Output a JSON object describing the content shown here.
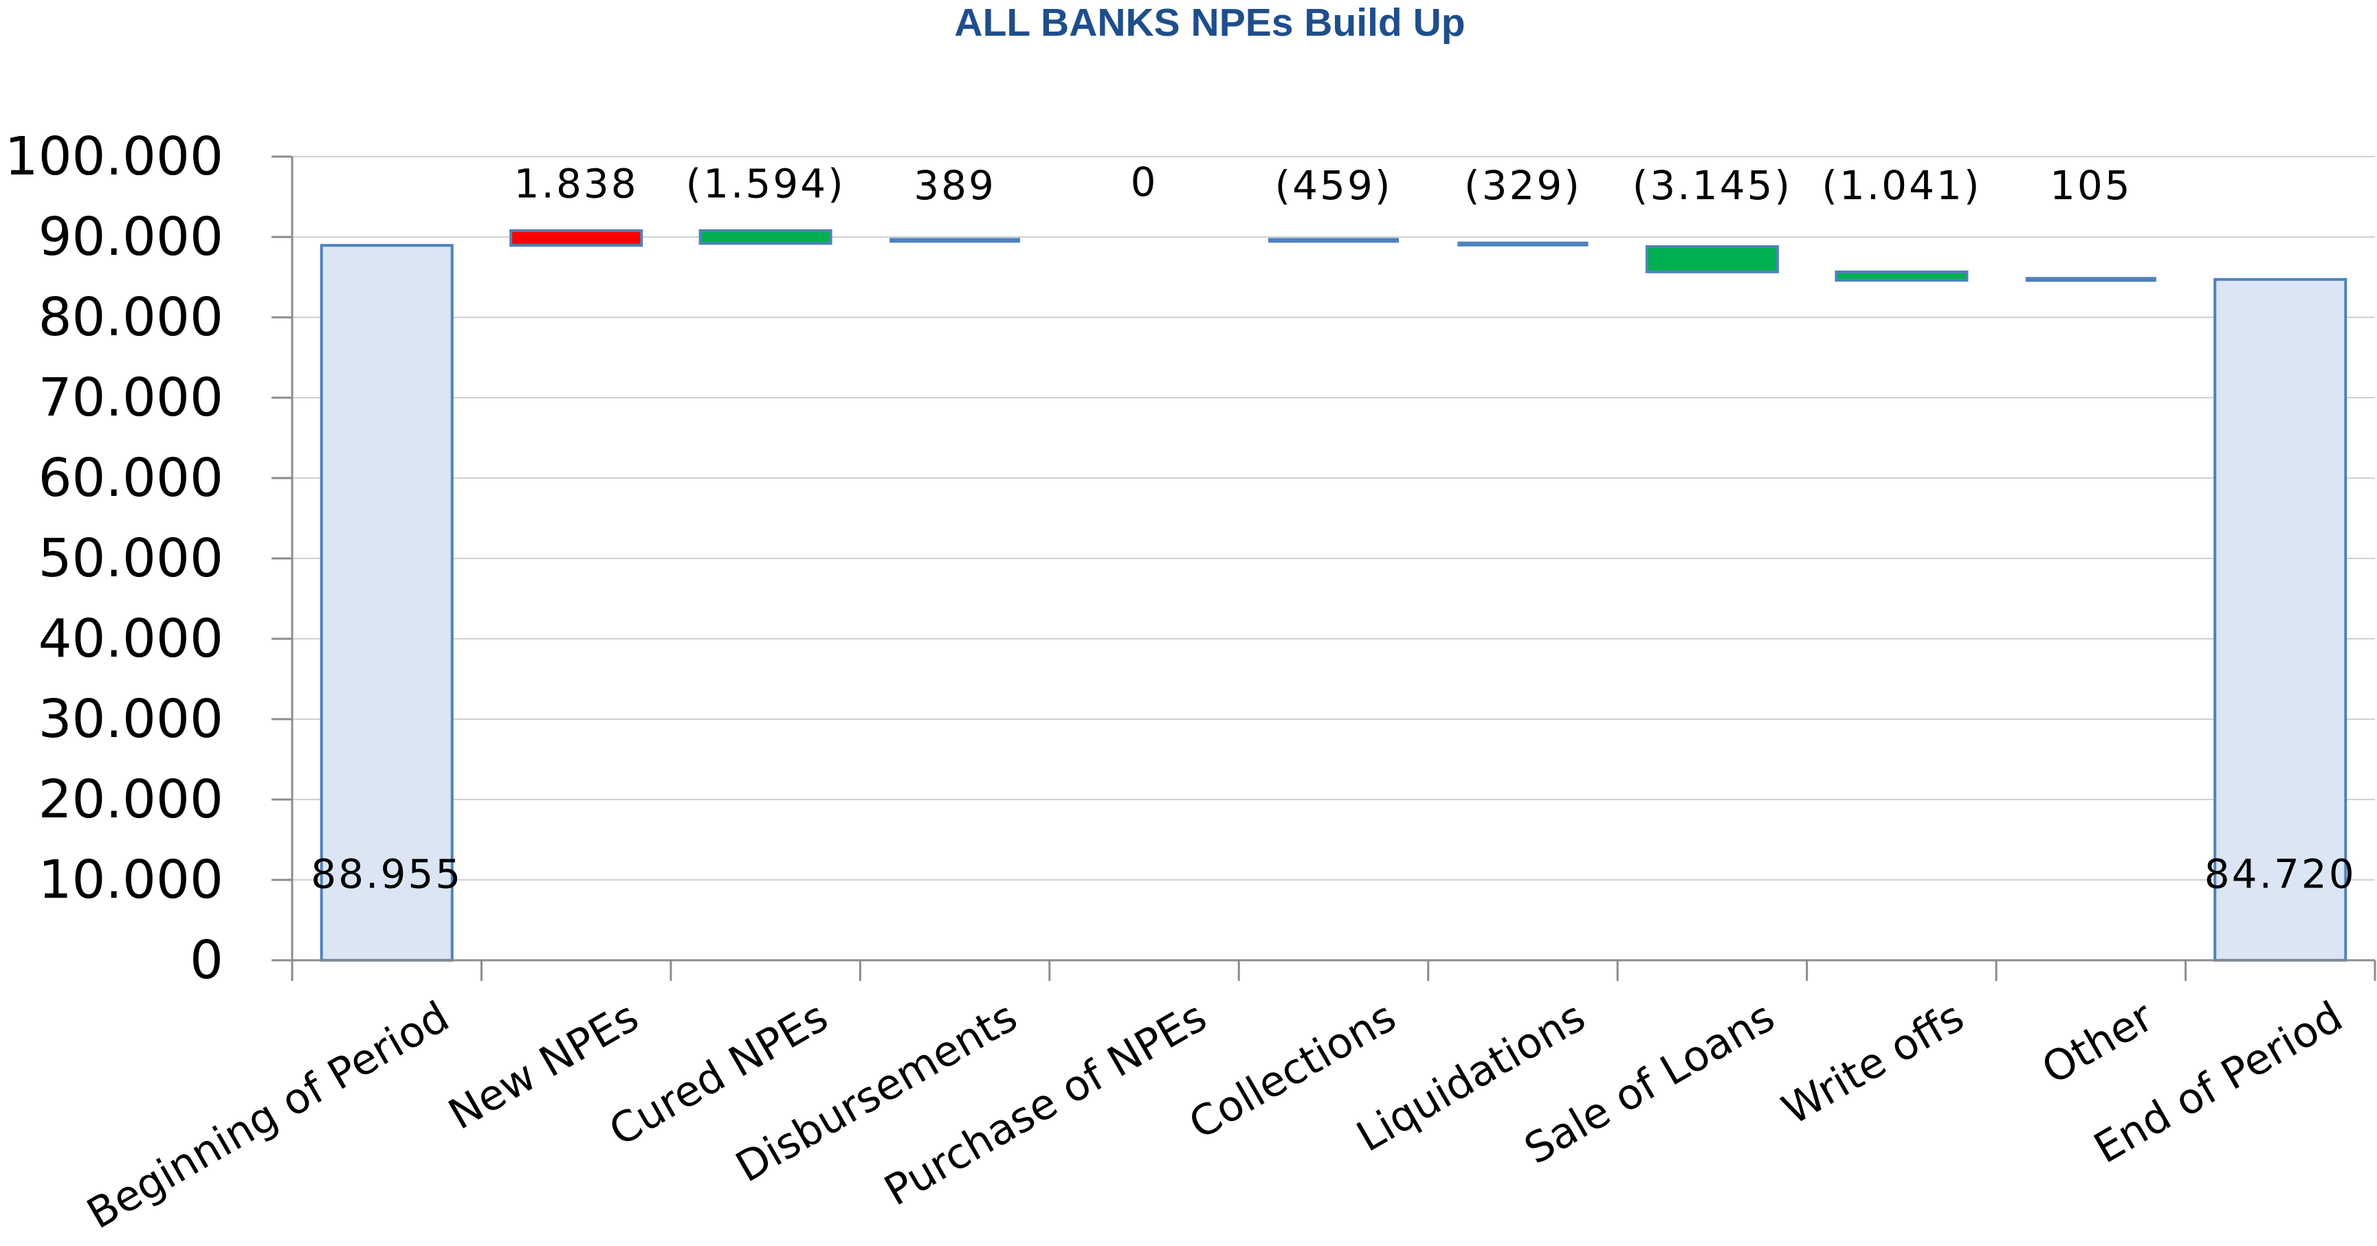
{
  "chart_data": {
    "type": "bar",
    "title": "ALL BANKS NPEs Build Up",
    "categories": [
      "Beginning of Period",
      "New NPEs",
      "Cured NPEs",
      "Disbursements",
      "Purchase of NPEs",
      "Collections",
      "Liquidations",
      "Sale of Loans",
      "Write offs",
      "Other",
      "End of Period"
    ],
    "values": [
      88955,
      1838,
      -1594,
      389,
      0,
      -459,
      -329,
      -3145,
      -1041,
      105,
      84720
    ],
    "kinds": [
      "total",
      "change",
      "change",
      "change",
      "change",
      "change",
      "change",
      "change",
      "change",
      "change",
      "total"
    ],
    "data_labels": [
      "88.955",
      "1.838",
      "(1.594)",
      "389",
      "0",
      "(459)",
      "(329)",
      "(3.145)",
      "(1.041)",
      "105",
      "84.720"
    ],
    "ylim": [
      0,
      100000
    ],
    "yticks": [
      0,
      10000,
      20000,
      30000,
      40000,
      50000,
      60000,
      70000,
      80000,
      90000,
      100000
    ],
    "ytick_labels": [
      "0",
      "10.000",
      "20.000",
      "30.000",
      "40.000",
      "50.000",
      "60.000",
      "70.000",
      "80.000",
      "90.000",
      "100.000"
    ],
    "grid": true,
    "xlabel": "",
    "ylabel": "",
    "colors": {
      "total_fill": "#dbe5f3",
      "total_border": "#4f81bd",
      "increase_fill": "#ff0000",
      "decrease_fill": "#00b050",
      "bar_border": "#4f81bd",
      "title": "#1f4e8c"
    }
  }
}
